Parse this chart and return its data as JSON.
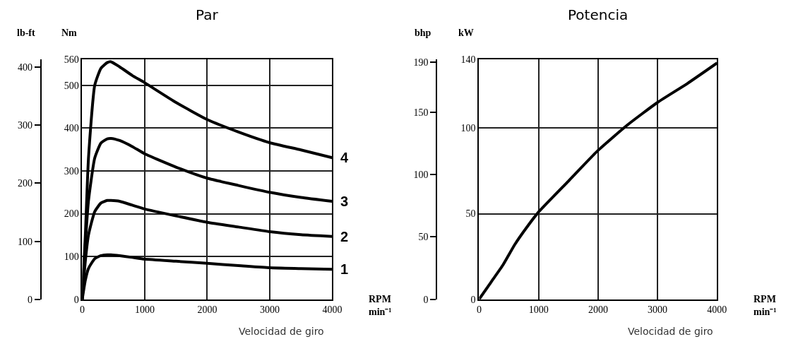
{
  "chart_data": [
    {
      "type": "line",
      "title": "Par",
      "xlabel": "RPM\nmin⁻¹",
      "ylabel": "Nm",
      "y2label": "lb-ft",
      "annotations": [
        "Velocidad de giro"
      ],
      "x": [
        0,
        50,
        100,
        200,
        300,
        400,
        460,
        600,
        800,
        1000,
        1500,
        2000,
        2500,
        3000,
        3500,
        4000
      ],
      "series": [
        {
          "name": "1",
          "color": "#000000",
          "values": [
            0,
            45,
            72,
            95,
            102,
            104,
            104,
            102,
            98,
            94,
            89,
            84,
            79,
            74,
            72,
            70
          ]
        },
        {
          "name": "2",
          "color": "#000000",
          "values": [
            0,
            90,
            150,
            205,
            225,
            231,
            231,
            229,
            220,
            211,
            195,
            180,
            169,
            158,
            151,
            147
          ]
        },
        {
          "name": "3",
          "color": "#000000",
          "values": [
            0,
            130,
            230,
            330,
            365,
            375,
            376,
            371,
            357,
            340,
            309,
            283,
            266,
            250,
            238,
            229
          ]
        },
        {
          "name": "4",
          "color": "#000000",
          "values": [
            0,
            150,
            330,
            500,
            540,
            553,
            555,
            543,
            523,
            506,
            460,
            420,
            391,
            366,
            349,
            331
          ]
        }
      ],
      "xlim": [
        0,
        4000
      ],
      "xticks": [
        0,
        1000,
        2000,
        3000,
        4000
      ],
      "ylim": [
        0,
        560
      ],
      "yticks": [
        0,
        100,
        200,
        300,
        400,
        500,
        560
      ],
      "y2lim": [
        0,
        413
      ],
      "y2ticks": [
        0,
        100,
        200,
        300,
        400
      ],
      "grid": true,
      "legend": false,
      "marker": "none",
      "line_style": "solid"
    },
    {
      "type": "line",
      "title": "Potencia",
      "xlabel": "RPM\nmin⁻¹",
      "ylabel": "kW",
      "y2label": "bhp",
      "annotations": [
        "Velocidad de giro"
      ],
      "x": [
        0,
        200,
        400,
        600,
        800,
        1000,
        1500,
        2000,
        2500,
        3000,
        3500,
        4000
      ],
      "series": [
        {
          "color": "#000000",
          "values": [
            0,
            10,
            20,
            32,
            42,
            51,
            69,
            87,
            102,
            115,
            126,
            138
          ]
        }
      ],
      "xlim": [
        0,
        4000
      ],
      "xticks": [
        0,
        1000,
        2000,
        3000,
        4000
      ],
      "ylim": [
        0,
        140
      ],
      "yticks": [
        0,
        50,
        100,
        140
      ],
      "y2lim": [
        0,
        192
      ],
      "y2ticks": [
        0,
        50,
        100,
        150,
        190
      ],
      "grid": true,
      "legend": false,
      "marker": "none",
      "line_style": "solid"
    }
  ]
}
